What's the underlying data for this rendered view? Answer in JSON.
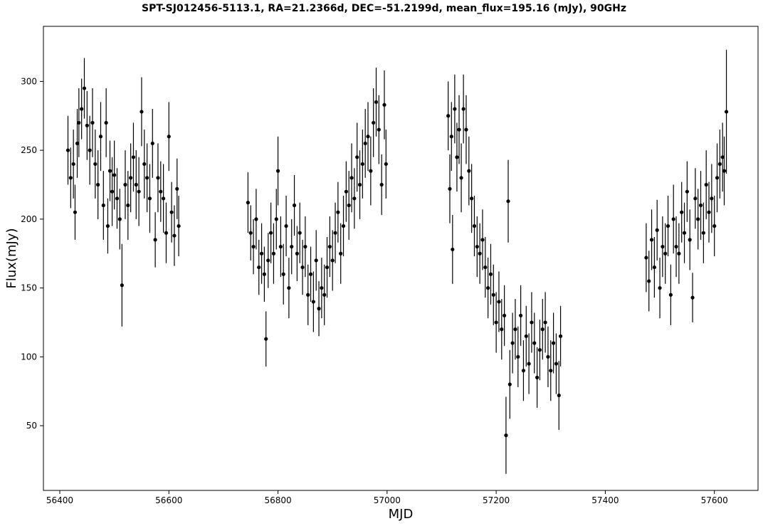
{
  "chart_data": {
    "type": "scatter",
    "title": "SPT-SJ012456-5113.1, RA=21.2366d, DEC=-51.2199d, mean_flux=195.16 (mJy), 90GHz",
    "xlabel": "MJD",
    "ylabel": "Flux(mJy)",
    "xlim": [
      56370,
      57680
    ],
    "ylim": [
      3,
      340
    ],
    "xticks": [
      56400,
      56600,
      56800,
      57000,
      57200,
      57400,
      57600
    ],
    "yticks": [
      50,
      100,
      150,
      200,
      250,
      300
    ],
    "grid": false,
    "legend": "none",
    "marker_color": "#000000",
    "series": [
      {
        "error_bars": true,
        "points": [
          {
            "x": 56415,
            "y": 250,
            "err": 25
          },
          {
            "x": 56420,
            "y": 230,
            "err": 22
          },
          {
            "x": 56425,
            "y": 240,
            "err": 25
          },
          {
            "x": 56428,
            "y": 205,
            "err": 20
          },
          {
            "x": 56432,
            "y": 255,
            "err": 25
          },
          {
            "x": 56435,
            "y": 270,
            "err": 25
          },
          {
            "x": 56440,
            "y": 280,
            "err": 22
          },
          {
            "x": 56445,
            "y": 295,
            "err": 22
          },
          {
            "x": 56450,
            "y": 268,
            "err": 25
          },
          {
            "x": 56455,
            "y": 250,
            "err": 25
          },
          {
            "x": 56460,
            "y": 270,
            "err": 25
          },
          {
            "x": 56465,
            "y": 240,
            "err": 25
          },
          {
            "x": 56470,
            "y": 225,
            "err": 25
          },
          {
            "x": 56475,
            "y": 260,
            "err": 25
          },
          {
            "x": 56480,
            "y": 210,
            "err": 25
          },
          {
            "x": 56485,
            "y": 270,
            "err": 25
          },
          {
            "x": 56488,
            "y": 195,
            "err": 20
          },
          {
            "x": 56492,
            "y": 235,
            "err": 22
          },
          {
            "x": 56496,
            "y": 220,
            "err": 25
          },
          {
            "x": 56500,
            "y": 232,
            "err": 25
          },
          {
            "x": 56505,
            "y": 215,
            "err": 22
          },
          {
            "x": 56510,
            "y": 200,
            "err": 22
          },
          {
            "x": 56514,
            "y": 152,
            "err": 30
          },
          {
            "x": 56520,
            "y": 225,
            "err": 25
          },
          {
            "x": 56525,
            "y": 210,
            "err": 25
          },
          {
            "x": 56530,
            "y": 230,
            "err": 25
          },
          {
            "x": 56535,
            "y": 245,
            "err": 25
          },
          {
            "x": 56540,
            "y": 225,
            "err": 25
          },
          {
            "x": 56545,
            "y": 220,
            "err": 25
          },
          {
            "x": 56550,
            "y": 278,
            "err": 25
          },
          {
            "x": 56555,
            "y": 240,
            "err": 25
          },
          {
            "x": 56560,
            "y": 230,
            "err": 25
          },
          {
            "x": 56565,
            "y": 215,
            "err": 25
          },
          {
            "x": 56570,
            "y": 255,
            "err": 25
          },
          {
            "x": 56575,
            "y": 185,
            "err": 20
          },
          {
            "x": 56580,
            "y": 230,
            "err": 25
          },
          {
            "x": 56585,
            "y": 220,
            "err": 22
          },
          {
            "x": 56590,
            "y": 215,
            "err": 25
          },
          {
            "x": 56595,
            "y": 190,
            "err": 22
          },
          {
            "x": 56600,
            "y": 260,
            "err": 25
          },
          {
            "x": 56605,
            "y": 205,
            "err": 22
          },
          {
            "x": 56610,
            "y": 188,
            "err": 22
          },
          {
            "x": 56615,
            "y": 222,
            "err": 22
          },
          {
            "x": 56618,
            "y": 195,
            "err": 22
          },
          {
            "x": 56745,
            "y": 212,
            "err": 22
          },
          {
            "x": 56750,
            "y": 190,
            "err": 20
          },
          {
            "x": 56755,
            "y": 180,
            "err": 20
          },
          {
            "x": 56760,
            "y": 200,
            "err": 22
          },
          {
            "x": 56765,
            "y": 165,
            "err": 20
          },
          {
            "x": 56770,
            "y": 175,
            "err": 22
          },
          {
            "x": 56775,
            "y": 160,
            "err": 20
          },
          {
            "x": 56778,
            "y": 113,
            "err": 20
          },
          {
            "x": 56782,
            "y": 170,
            "err": 20
          },
          {
            "x": 56787,
            "y": 190,
            "err": 22
          },
          {
            "x": 56792,
            "y": 175,
            "err": 22
          },
          {
            "x": 56797,
            "y": 200,
            "err": 22
          },
          {
            "x": 56800,
            "y": 235,
            "err": 25
          },
          {
            "x": 56805,
            "y": 180,
            "err": 22
          },
          {
            "x": 56810,
            "y": 160,
            "err": 22
          },
          {
            "x": 56815,
            "y": 195,
            "err": 22
          },
          {
            "x": 56820,
            "y": 150,
            "err": 22
          },
          {
            "x": 56825,
            "y": 180,
            "err": 20
          },
          {
            "x": 56830,
            "y": 210,
            "err": 22
          },
          {
            "x": 56835,
            "y": 175,
            "err": 20
          },
          {
            "x": 56840,
            "y": 190,
            "err": 22
          },
          {
            "x": 56845,
            "y": 165,
            "err": 20
          },
          {
            "x": 56850,
            "y": 180,
            "err": 22
          },
          {
            "x": 56855,
            "y": 145,
            "err": 22
          },
          {
            "x": 56860,
            "y": 160,
            "err": 20
          },
          {
            "x": 56865,
            "y": 140,
            "err": 22
          },
          {
            "x": 56870,
            "y": 170,
            "err": 22
          },
          {
            "x": 56875,
            "y": 135,
            "err": 20
          },
          {
            "x": 56880,
            "y": 150,
            "err": 22
          },
          {
            "x": 56885,
            "y": 145,
            "err": 22
          },
          {
            "x": 56890,
            "y": 165,
            "err": 22
          },
          {
            "x": 56895,
            "y": 180,
            "err": 22
          },
          {
            "x": 56900,
            "y": 170,
            "err": 22
          },
          {
            "x": 56905,
            "y": 190,
            "err": 22
          },
          {
            "x": 56910,
            "y": 205,
            "err": 22
          },
          {
            "x": 56915,
            "y": 175,
            "err": 22
          },
          {
            "x": 56920,
            "y": 195,
            "err": 22
          },
          {
            "x": 56925,
            "y": 220,
            "err": 22
          },
          {
            "x": 56930,
            "y": 210,
            "err": 25
          },
          {
            "x": 56935,
            "y": 230,
            "err": 25
          },
          {
            "x": 56940,
            "y": 215,
            "err": 22
          },
          {
            "x": 56945,
            "y": 245,
            "err": 25
          },
          {
            "x": 56950,
            "y": 225,
            "err": 25
          },
          {
            "x": 56955,
            "y": 240,
            "err": 25
          },
          {
            "x": 56960,
            "y": 255,
            "err": 25
          },
          {
            "x": 56965,
            "y": 260,
            "err": 25
          },
          {
            "x": 56970,
            "y": 235,
            "err": 25
          },
          {
            "x": 56975,
            "y": 270,
            "err": 25
          },
          {
            "x": 56980,
            "y": 285,
            "err": 25
          },
          {
            "x": 56985,
            "y": 265,
            "err": 25
          },
          {
            "x": 56990,
            "y": 225,
            "err": 22
          },
          {
            "x": 56995,
            "y": 283,
            "err": 25
          },
          {
            "x": 56998,
            "y": 240,
            "err": 25
          },
          {
            "x": 57112,
            "y": 275,
            "err": 25
          },
          {
            "x": 57115,
            "y": 222,
            "err": 25
          },
          {
            "x": 57118,
            "y": 260,
            "err": 25
          },
          {
            "x": 57120,
            "y": 178,
            "err": 25
          },
          {
            "x": 57124,
            "y": 280,
            "err": 25
          },
          {
            "x": 57128,
            "y": 245,
            "err": 25
          },
          {
            "x": 57132,
            "y": 265,
            "err": 25
          },
          {
            "x": 57136,
            "y": 230,
            "err": 25
          },
          {
            "x": 57140,
            "y": 280,
            "err": 25
          },
          {
            "x": 57145,
            "y": 265,
            "err": 25
          },
          {
            "x": 57150,
            "y": 235,
            "err": 25
          },
          {
            "x": 57155,
            "y": 215,
            "err": 25
          },
          {
            "x": 57160,
            "y": 195,
            "err": 22
          },
          {
            "x": 57165,
            "y": 180,
            "err": 22
          },
          {
            "x": 57170,
            "y": 175,
            "err": 22
          },
          {
            "x": 57175,
            "y": 185,
            "err": 22
          },
          {
            "x": 57180,
            "y": 165,
            "err": 22
          },
          {
            "x": 57185,
            "y": 150,
            "err": 22
          },
          {
            "x": 57190,
            "y": 160,
            "err": 22
          },
          {
            "x": 57195,
            "y": 145,
            "err": 22
          },
          {
            "x": 57200,
            "y": 125,
            "err": 22
          },
          {
            "x": 57205,
            "y": 140,
            "err": 22
          },
          {
            "x": 57210,
            "y": 120,
            "err": 22
          },
          {
            "x": 57215,
            "y": 130,
            "err": 22
          },
          {
            "x": 57218,
            "y": 43,
            "err": 28
          },
          {
            "x": 57222,
            "y": 213,
            "err": 30
          },
          {
            "x": 57225,
            "y": 80,
            "err": 25
          },
          {
            "x": 57230,
            "y": 110,
            "err": 22
          },
          {
            "x": 57235,
            "y": 120,
            "err": 22
          },
          {
            "x": 57240,
            "y": 100,
            "err": 22
          },
          {
            "x": 57245,
            "y": 130,
            "err": 22
          },
          {
            "x": 57250,
            "y": 90,
            "err": 22
          },
          {
            "x": 57255,
            "y": 115,
            "err": 22
          },
          {
            "x": 57260,
            "y": 95,
            "err": 22
          },
          {
            "x": 57265,
            "y": 125,
            "err": 22
          },
          {
            "x": 57270,
            "y": 110,
            "err": 22
          },
          {
            "x": 57275,
            "y": 85,
            "err": 22
          },
          {
            "x": 57280,
            "y": 105,
            "err": 22
          },
          {
            "x": 57285,
            "y": 120,
            "err": 22
          },
          {
            "x": 57290,
            "y": 125,
            "err": 22
          },
          {
            "x": 57295,
            "y": 100,
            "err": 22
          },
          {
            "x": 57300,
            "y": 90,
            "err": 22
          },
          {
            "x": 57305,
            "y": 110,
            "err": 22
          },
          {
            "x": 57310,
            "y": 95,
            "err": 22
          },
          {
            "x": 57315,
            "y": 72,
            "err": 25
          },
          {
            "x": 57318,
            "y": 115,
            "err": 22
          },
          {
            "x": 57475,
            "y": 172,
            "err": 25
          },
          {
            "x": 57480,
            "y": 155,
            "err": 22
          },
          {
            "x": 57485,
            "y": 185,
            "err": 22
          },
          {
            "x": 57490,
            "y": 165,
            "err": 22
          },
          {
            "x": 57495,
            "y": 192,
            "err": 22
          },
          {
            "x": 57500,
            "y": 150,
            "err": 22
          },
          {
            "x": 57505,
            "y": 180,
            "err": 22
          },
          {
            "x": 57510,
            "y": 175,
            "err": 22
          },
          {
            "x": 57515,
            "y": 195,
            "err": 22
          },
          {
            "x": 57520,
            "y": 145,
            "err": 22
          },
          {
            "x": 57525,
            "y": 200,
            "err": 25
          },
          {
            "x": 57530,
            "y": 180,
            "err": 22
          },
          {
            "x": 57535,
            "y": 175,
            "err": 22
          },
          {
            "x": 57540,
            "y": 205,
            "err": 22
          },
          {
            "x": 57545,
            "y": 190,
            "err": 22
          },
          {
            "x": 57550,
            "y": 220,
            "err": 22
          },
          {
            "x": 57555,
            "y": 185,
            "err": 22
          },
          {
            "x": 57560,
            "y": 143,
            "err": 18
          },
          {
            "x": 57565,
            "y": 215,
            "err": 22
          },
          {
            "x": 57570,
            "y": 200,
            "err": 22
          },
          {
            "x": 57575,
            "y": 210,
            "err": 25
          },
          {
            "x": 57580,
            "y": 190,
            "err": 22
          },
          {
            "x": 57585,
            "y": 225,
            "err": 25
          },
          {
            "x": 57590,
            "y": 205,
            "err": 22
          },
          {
            "x": 57595,
            "y": 215,
            "err": 25
          },
          {
            "x": 57600,
            "y": 195,
            "err": 22
          },
          {
            "x": 57605,
            "y": 230,
            "err": 25
          },
          {
            "x": 57610,
            "y": 240,
            "err": 25
          },
          {
            "x": 57615,
            "y": 245,
            "err": 25
          },
          {
            "x": 57618,
            "y": 235,
            "err": 25
          },
          {
            "x": 57622,
            "y": 278,
            "err": 45
          }
        ]
      }
    ]
  }
}
